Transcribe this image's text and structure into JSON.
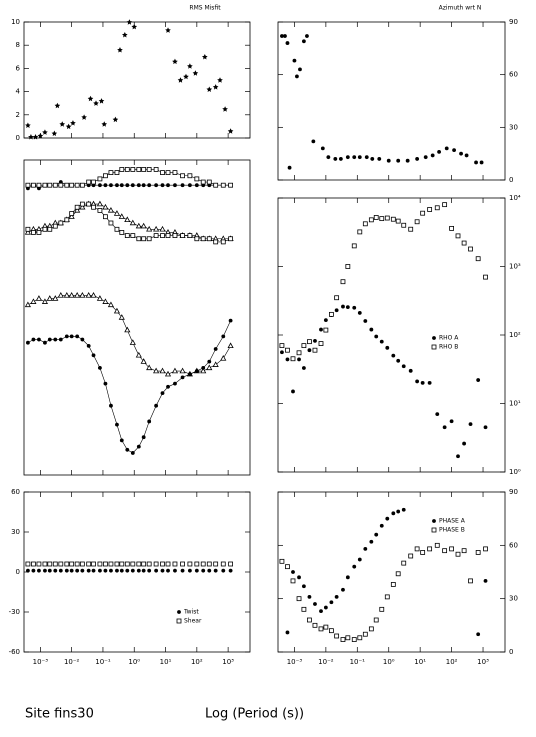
{
  "chart_data": [
    {
      "type": "scatter",
      "title": "RMS Misfit",
      "xscale": "log",
      "xlim": [
        0.0003,
        5000
      ],
      "xticks": [
        0.001,
        0.01,
        0.1,
        1,
        10,
        100,
        1000
      ],
      "ylim": [
        0,
        10
      ],
      "yticks": [
        0,
        2,
        4,
        6,
        8,
        10
      ],
      "yaxis": "left",
      "x": [
        0.0004,
        0.0005,
        0.0007,
        0.001,
        0.0014,
        0.0028,
        0.0035,
        0.005,
        0.008,
        0.011,
        0.025,
        0.04,
        0.06,
        0.09,
        0.11,
        0.25,
        0.35,
        0.5,
        0.7,
        1,
        12,
        20,
        30,
        45,
        60,
        90,
        180,
        250,
        400,
        550,
        800,
        1200
      ],
      "series": [
        {
          "color": "#000000",
          "marker": "star",
          "values": [
            1.1,
            0.1,
            0.1,
            0.2,
            0.5,
            0.4,
            2.8,
            1.2,
            1.0,
            1.3,
            1.8,
            3.4,
            3.0,
            3.2,
            1.2,
            1.6,
            7.6,
            8.9,
            10,
            9.6,
            9.3,
            6.6,
            5.0,
            5.3,
            6.2,
            5.6,
            7.0,
            4.2,
            4.4,
            5.0,
            2.5,
            0.6
          ]
        }
      ]
    },
    {
      "type": "scatter",
      "title": "Azimuth wrt N",
      "xscale": "log",
      "xlim": [
        0.0003,
        5000
      ],
      "xticks": [
        0.001,
        0.01,
        0.1,
        1,
        10,
        100,
        1000
      ],
      "ylim": [
        0,
        90
      ],
      "yticks": [
        0,
        30,
        60,
        90
      ],
      "yaxis": "right",
      "x": [
        0.0004,
        0.0005,
        0.0006,
        0.0007,
        0.001,
        0.0012,
        0.0015,
        0.002,
        0.0025,
        0.004,
        0.008,
        0.012,
        0.02,
        0.03,
        0.05,
        0.08,
        0.12,
        0.2,
        0.3,
        0.5,
        1,
        2,
        4,
        8,
        15,
        25,
        40,
        70,
        120,
        200,
        300,
        600,
        900
      ],
      "series": [
        {
          "color": "#000000",
          "marker": "circle",
          "values": [
            82,
            82,
            78,
            7,
            68,
            59,
            63,
            79,
            82,
            22,
            18,
            13,
            12,
            12,
            13,
            13,
            13,
            13,
            12,
            12,
            11,
            11,
            11,
            12,
            13,
            14,
            16,
            18,
            17,
            15,
            14,
            10,
            10
          ]
        }
      ]
    },
    {
      "type": "line",
      "xscale": "log",
      "xlim": [
        0.0003,
        5000
      ],
      "xticks": [
        0.001,
        0.01,
        0.1,
        1,
        10,
        100,
        1000
      ],
      "ylim": [
        0,
        100
      ],
      "x": [
        0.0004,
        0.0006,
        0.0009,
        0.0014,
        0.002,
        0.003,
        0.0045,
        0.007,
        0.01,
        0.015,
        0.022,
        0.035,
        0.05,
        0.08,
        0.12,
        0.18,
        0.28,
        0.4,
        0.6,
        0.9,
        1.4,
        2,
        3,
        5,
        8,
        12,
        20,
        35,
        60,
        100,
        160,
        250,
        400,
        700,
        1200
      ],
      "series": [
        {
          "color": "#000000",
          "marker": "circle",
          "values": [
            91,
            92,
            91,
            92,
            92,
            92,
            93,
            92,
            92,
            92,
            92,
            92,
            92,
            92,
            92,
            92,
            92,
            92,
            92,
            92,
            92,
            92,
            92,
            92,
            92,
            92,
            92,
            92,
            92,
            92,
            92,
            92,
            92,
            92,
            92
          ]
        },
        {
          "color": "#000000",
          "marker": "square",
          "values": [
            92,
            92,
            92,
            92,
            92,
            92,
            92,
            92,
            92,
            92,
            92,
            93,
            93,
            94,
            95,
            96,
            96,
            97,
            97,
            97,
            97,
            97,
            97,
            97,
            96,
            96,
            96,
            95,
            95,
            94,
            93,
            93,
            92,
            92,
            92
          ]
        },
        {
          "color": "#000000",
          "marker": "triangle",
          "values": [
            77,
            78,
            78,
            79,
            79,
            80,
            80,
            81,
            82,
            84,
            85,
            86,
            86,
            86,
            85,
            84,
            83,
            82,
            81,
            80,
            79,
            79,
            78,
            78,
            78,
            77,
            77,
            76,
            76,
            76,
            75,
            75,
            75,
            75,
            75
          ]
        },
        {
          "color": "#000000",
          "marker": "square",
          "values": [
            78,
            77,
            77,
            78,
            78,
            79,
            80,
            81,
            83,
            85,
            86,
            86,
            85,
            84,
            82,
            80,
            78,
            77,
            76,
            76,
            75,
            75,
            75,
            76,
            76,
            76,
            76,
            76,
            76,
            75,
            75,
            75,
            74,
            74,
            75
          ]
        },
        {
          "color": "#000000",
          "marker": "triangle",
          "values": [
            54,
            55,
            56,
            55,
            56,
            56,
            57,
            57,
            57,
            57,
            57,
            57,
            57,
            56,
            55,
            54,
            52,
            50,
            46,
            42,
            38,
            36,
            34,
            33,
            33,
            32,
            33,
            33,
            32,
            33,
            33,
            34,
            35,
            37,
            41
          ]
        },
        {
          "color": "#000000",
          "marker": "circle",
          "values": [
            42,
            43,
            43,
            42,
            43,
            43,
            43,
            44,
            44,
            44,
            43,
            41,
            38,
            34,
            29,
            22,
            16,
            11,
            8,
            7,
            9,
            12,
            17,
            22,
            26,
            28,
            29,
            31,
            32,
            33,
            34,
            36,
            40,
            44,
            49
          ]
        }
      ]
    },
    {
      "type": "scatter",
      "xscale": "log",
      "xlim": [
        0.0003,
        5000
      ],
      "xticks": [
        0.001,
        0.01,
        0.1,
        1,
        10,
        100,
        1000
      ],
      "yscale": "log",
      "ylim": [
        1,
        10000
      ],
      "yaxis": "right",
      "legend": "center-right",
      "yticks": [
        {
          "value": 1,
          "label": "10⁰"
        },
        {
          "value": 10,
          "label": "10¹"
        },
        {
          "value": 100,
          "label": "10²"
        },
        {
          "value": 1000,
          "label": "10³"
        },
        {
          "value": 10000,
          "label": "10⁴"
        }
      ],
      "x": [
        0.0004,
        0.0006,
        0.0009,
        0.0014,
        0.002,
        0.003,
        0.0045,
        0.007,
        0.01,
        0.015,
        0.022,
        0.035,
        0.05,
        0.08,
        0.12,
        0.18,
        0.28,
        0.4,
        0.6,
        0.9,
        1.4,
        2,
        3,
        5,
        8,
        12,
        20,
        35,
        60,
        100,
        160,
        250,
        400,
        700,
        1200
      ],
      "series": [
        {
          "name": "RHO A",
          "color": "#000000",
          "marker": "circle",
          "values": [
            56,
            44,
            15,
            44,
            33,
            60,
            82,
            120,
            165,
            195,
            230,
            260,
            255,
            250,
            210,
            160,
            120,
            95,
            80,
            65,
            50,
            42,
            35,
            30,
            21,
            20,
            20,
            7,
            4.5,
            5.5,
            1.7,
            2.6,
            5,
            22,
            4.5
          ]
        },
        {
          "name": "RHO B",
          "color": "#000000",
          "marker": "square",
          "values": [
            70,
            60,
            45,
            55,
            70,
            80,
            60,
            75,
            118,
            200,
            350,
            600,
            1000,
            2000,
            3200,
            4200,
            4800,
            5200,
            5000,
            5100,
            4900,
            4600,
            4000,
            3500,
            4500,
            6000,
            6800,
            7200,
            8000,
            3600,
            2800,
            2200,
            1800,
            1300,
            700
          ]
        }
      ]
    },
    {
      "type": "scatter",
      "xscale": "log",
      "xlim": [
        0.0003,
        5000
      ],
      "legend": "lower-right",
      "xticks": [
        {
          "value": 0.001,
          "label": "10⁻³"
        },
        {
          "value": 0.01,
          "label": "10⁻²"
        },
        {
          "value": 0.1,
          "label": "10⁻¹"
        },
        {
          "value": 1,
          "label": "10⁰"
        },
        {
          "value": 10,
          "label": "10¹"
        },
        {
          "value": 100,
          "label": "10²"
        },
        {
          "value": 1000,
          "label": "10³"
        }
      ],
      "ylim": [
        -60,
        60
      ],
      "yticks": [
        -60,
        -30,
        0,
        30,
        60
      ],
      "yaxis": "left",
      "x": [
        0.0004,
        0.0006,
        0.0009,
        0.0014,
        0.002,
        0.003,
        0.0045,
        0.007,
        0.01,
        0.015,
        0.022,
        0.035,
        0.05,
        0.08,
        0.12,
        0.18,
        0.28,
        0.4,
        0.6,
        0.9,
        1.4,
        2,
        3,
        5,
        8,
        12,
        20,
        35,
        60,
        100,
        160,
        250,
        400,
        700,
        1200
      ],
      "series": [
        {
          "name": "Twist",
          "color": "#000000",
          "marker": "circle",
          "values": [
            1,
            1,
            1,
            1,
            1,
            1,
            1,
            1,
            1,
            1,
            1,
            1,
            1,
            1,
            1,
            1,
            1,
            1,
            1,
            1,
            1,
            1,
            1,
            1,
            1,
            1,
            1,
            1,
            1,
            1,
            1,
            1,
            1,
            1,
            1
          ]
        },
        {
          "name": "Shear",
          "color": "#000000",
          "marker": "square",
          "values": [
            6,
            6,
            6,
            6,
            6,
            6,
            6,
            6,
            6,
            6,
            6,
            6,
            6,
            6,
            6,
            6,
            6,
            6,
            6,
            6,
            6,
            6,
            6,
            6,
            6,
            6,
            6,
            6,
            6,
            6,
            6,
            6,
            6,
            6,
            6
          ]
        }
      ]
    },
    {
      "type": "scatter",
      "xscale": "log",
      "xlim": [
        0.0003,
        5000
      ],
      "legend": "upper-right",
      "xticks": [
        {
          "value": 0.001,
          "label": "10⁻³"
        },
        {
          "value": 0.01,
          "label": "10⁻²"
        },
        {
          "value": 0.1,
          "label": "10⁻¹"
        },
        {
          "value": 1,
          "label": "10⁰"
        },
        {
          "value": 10,
          "label": "10¹"
        },
        {
          "value": 100,
          "label": "10²"
        },
        {
          "value": 1000,
          "label": "10³"
        }
      ],
      "ylim": [
        0,
        90
      ],
      "yticks": [
        0,
        30,
        60,
        90
      ],
      "yaxis": "right",
      "x": [
        0.0004,
        0.0006,
        0.0009,
        0.0014,
        0.002,
        0.003,
        0.0045,
        0.007,
        0.01,
        0.015,
        0.022,
        0.035,
        0.05,
        0.08,
        0.12,
        0.18,
        0.28,
        0.4,
        0.6,
        0.9,
        1.4,
        2,
        3,
        5,
        8,
        12,
        20,
        35,
        60,
        100,
        160,
        250,
        400,
        700,
        1200
      ],
      "series": [
        {
          "name": "PHASE A",
          "color": "#000000",
          "marker": "circle",
          "values": [
            51,
            11,
            45,
            42,
            37,
            31,
            27,
            23,
            25,
            28,
            31,
            35,
            42,
            48,
            52,
            58,
            62,
            66,
            71,
            75,
            78,
            79,
            80,
            null,
            null,
            null,
            null,
            null,
            null,
            null,
            null,
            null,
            null,
            10,
            40
          ]
        },
        {
          "name": "PHASE B",
          "color": "#000000",
          "marker": "square",
          "values": [
            51,
            48,
            40,
            30,
            24,
            18,
            15,
            13,
            14,
            12,
            9,
            7,
            8,
            7,
            8,
            10,
            13,
            18,
            24,
            31,
            38,
            44,
            50,
            54,
            58,
            56,
            58,
            60,
            57,
            58,
            55,
            57,
            40,
            56,
            58
          ]
        }
      ]
    }
  ],
  "site_label": "Site fins30",
  "x_axis_label": "Log (Period (s))"
}
